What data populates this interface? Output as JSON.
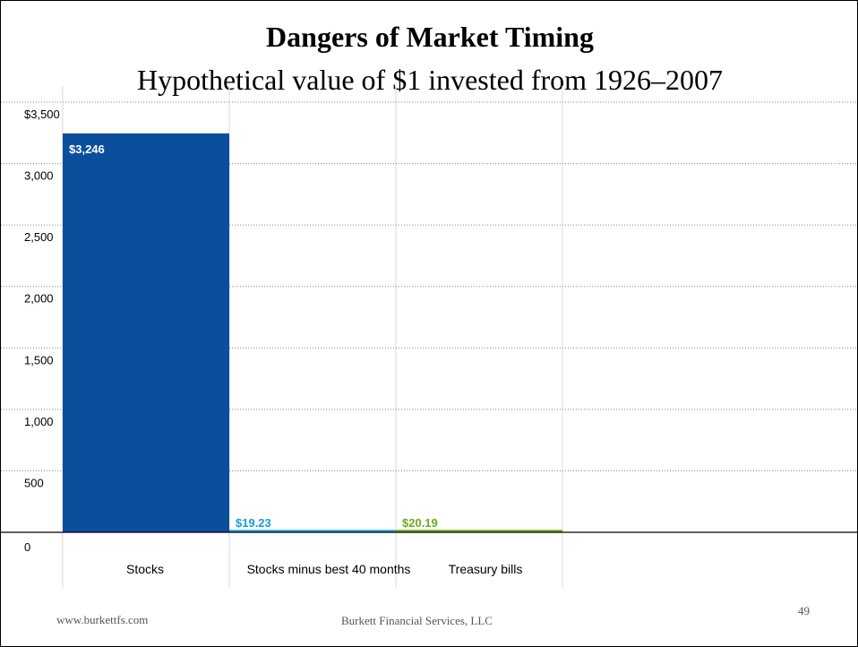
{
  "slide": {
    "title": "Dangers of Market Timing",
    "subtitle": "Hypothetical value of $1 invested from 1926–2007",
    "footer_left": "www.burkettfs.com",
    "footer_center": "Burkett Financial Services, LLC",
    "page_number": "49"
  },
  "chart_data": {
    "type": "bar",
    "categories": [
      "Stocks",
      "Stocks minus best 40 months",
      "Treasury bills"
    ],
    "values": [
      3246,
      19.23,
      20.19
    ],
    "data_labels": [
      "$3,246",
      "$19.23",
      "$20.19"
    ],
    "colors": [
      "#0b4f9c",
      "#1a9bd7",
      "#6aaa1e"
    ],
    "label_colors": [
      "#ffffff",
      "#1a9bd7",
      "#6aaa1e"
    ],
    "ylim": [
      0,
      3500
    ],
    "yticks": [
      0,
      500,
      1000,
      1500,
      2000,
      2500,
      3000,
      3500
    ],
    "ytick_labels": [
      "0",
      "500",
      "1,000",
      "1,500",
      "2,000",
      "2,500",
      "3,000",
      "$3,500"
    ],
    "grid": true
  }
}
